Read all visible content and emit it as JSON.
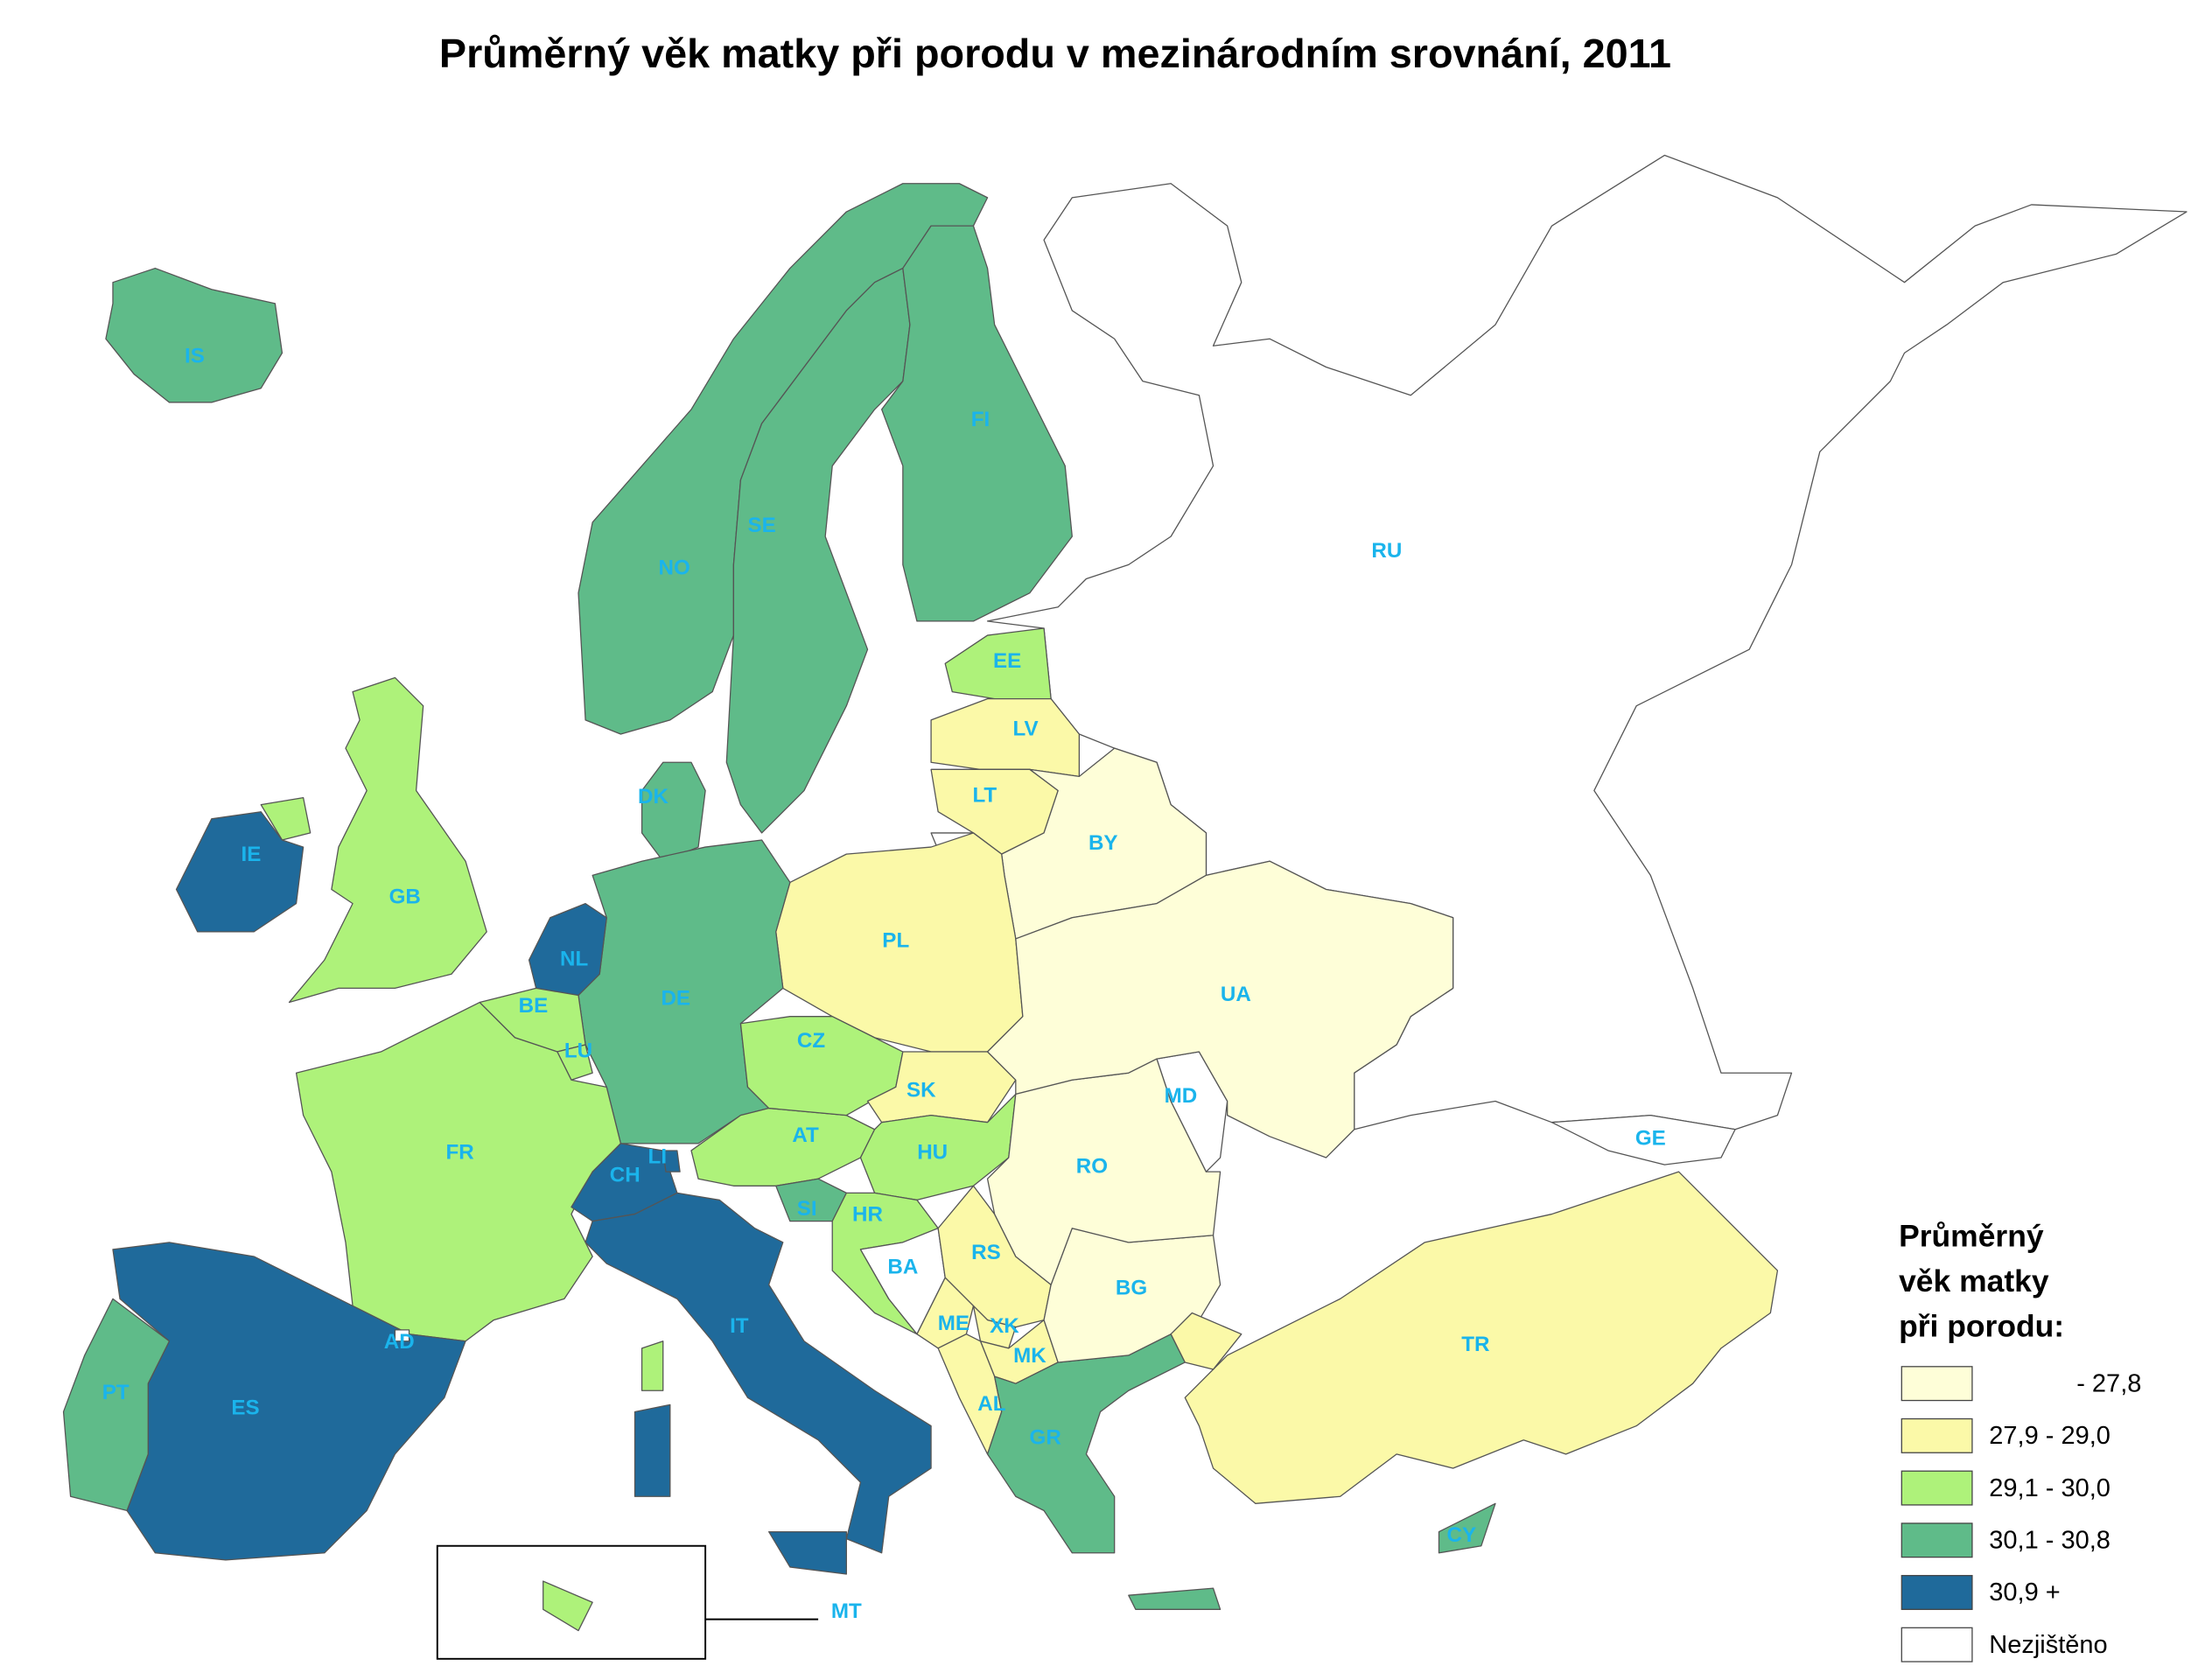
{
  "title": "Průměrný věk matky při porodu v mezinárodním srovnání, 2011",
  "legend": {
    "title": [
      "Průměrný",
      "věk matky",
      "při porodu:"
    ],
    "items": [
      {
        "label": "- 27,8",
        "color": "#fefed8"
      },
      {
        "label": "27,9 - 29,0",
        "color": "#fbf9a8"
      },
      {
        "label": "29,1 - 30,0",
        "color": "#aef27a"
      },
      {
        "label": "30,1 - 30,8",
        "color": "#5fbb89"
      },
      {
        "label": "30,9 +",
        "color": "#1f6a9b"
      },
      {
        "label": "Nezjištěno",
        "color": "#ffffff"
      }
    ]
  },
  "countries": [
    {
      "code": "RU",
      "color": "#ffffff"
    },
    {
      "code": "IS",
      "color": "#5fbb89"
    },
    {
      "code": "NO",
      "color": "#5fbb89"
    },
    {
      "code": "SE",
      "color": "#5fbb89"
    },
    {
      "code": "FI",
      "color": "#5fbb89"
    },
    {
      "code": "DK",
      "color": "#5fbb89"
    },
    {
      "code": "EE",
      "color": "#aef27a"
    },
    {
      "code": "LV",
      "color": "#fbf9a8"
    },
    {
      "code": "LT",
      "color": "#fbf9a8"
    },
    {
      "code": "BY",
      "color": "#fefed8"
    },
    {
      "code": "PL",
      "color": "#fbf9a8"
    },
    {
      "code": "DE",
      "color": "#5fbb89"
    },
    {
      "code": "NL",
      "color": "#1f6a9b"
    },
    {
      "code": "BE",
      "color": "#aef27a"
    },
    {
      "code": "LU",
      "color": "#aef27a"
    },
    {
      "code": "FR",
      "color": "#aef27a"
    },
    {
      "code": "CH",
      "color": "#1f6a9b"
    },
    {
      "code": "LI",
      "color": "#1f6a9b"
    },
    {
      "code": "IT",
      "color": "#1f6a9b"
    },
    {
      "code": "AT",
      "color": "#aef27a"
    },
    {
      "code": "CZ",
      "color": "#aef27a"
    },
    {
      "code": "SK",
      "color": "#fbf9a8"
    },
    {
      "code": "HU",
      "color": "#aef27a"
    },
    {
      "code": "SI",
      "color": "#5fbb89"
    },
    {
      "code": "HR",
      "color": "#aef27a"
    },
    {
      "code": "BA",
      "color": "#ffffff"
    },
    {
      "code": "RS",
      "color": "#fbf9a8"
    },
    {
      "code": "ME",
      "color": "#fbf9a8"
    },
    {
      "code": "XK",
      "color": "#fbf9a8"
    },
    {
      "code": "MK",
      "color": "#fbf9a8"
    },
    {
      "code": "AL",
      "color": "#fbf9a8"
    },
    {
      "code": "GR",
      "color": "#5fbb89"
    },
    {
      "code": "BG",
      "color": "#fefed8"
    },
    {
      "code": "RO",
      "color": "#fefed8"
    },
    {
      "code": "MD",
      "color": "#ffffff"
    },
    {
      "code": "UA",
      "color": "#fefed8"
    },
    {
      "code": "TR",
      "color": "#fbf9a8"
    },
    {
      "code": "CY",
      "color": "#5fbb89"
    },
    {
      "code": "GE",
      "color": "#ffffff"
    },
    {
      "code": "GB",
      "color": "#aef27a"
    },
    {
      "code": "IE",
      "color": "#1f6a9b"
    },
    {
      "code": "ES",
      "color": "#1f6a9b"
    },
    {
      "code": "PT",
      "color": "#5fbb89"
    },
    {
      "code": "AD",
      "color": "#ffffff"
    },
    {
      "code": "MT",
      "color": "#aef27a"
    }
  ]
}
